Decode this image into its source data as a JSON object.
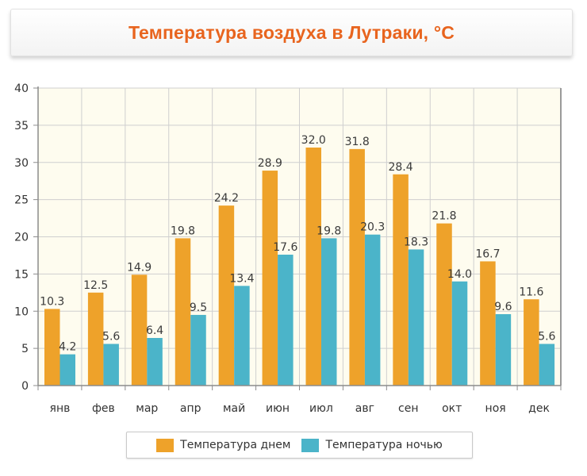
{
  "title": "Температура воздуха в Лутраки, °C",
  "colors": {
    "title": "#e8641e",
    "day": "#eea22a",
    "night": "#4bb4c9",
    "plot_bg": "#fefcef",
    "grid": "#cfcfcf",
    "axis": "#8c8c8c"
  },
  "legend": {
    "day_label": "Температура днем",
    "night_label": "Температура ночью"
  },
  "chart_data": {
    "type": "bar",
    "categories": [
      "янв",
      "фев",
      "мар",
      "апр",
      "май",
      "июн",
      "июл",
      "авг",
      "сен",
      "окт",
      "ноя",
      "дек"
    ],
    "series": [
      {
        "name": "Температура днем",
        "values": [
          10.3,
          12.5,
          14.9,
          19.8,
          24.2,
          28.9,
          32.0,
          31.8,
          28.4,
          21.8,
          16.7,
          11.6
        ]
      },
      {
        "name": "Температура ночью",
        "values": [
          4.2,
          5.6,
          6.4,
          9.5,
          13.4,
          17.6,
          19.8,
          20.3,
          18.3,
          14.0,
          9.6,
          5.6
        ]
      }
    ],
    "ylim": [
      0,
      40
    ],
    "yticks": [
      0,
      5,
      10,
      15,
      20,
      25,
      30,
      35,
      40
    ],
    "grid": true,
    "legend_position": "bottom-center"
  }
}
